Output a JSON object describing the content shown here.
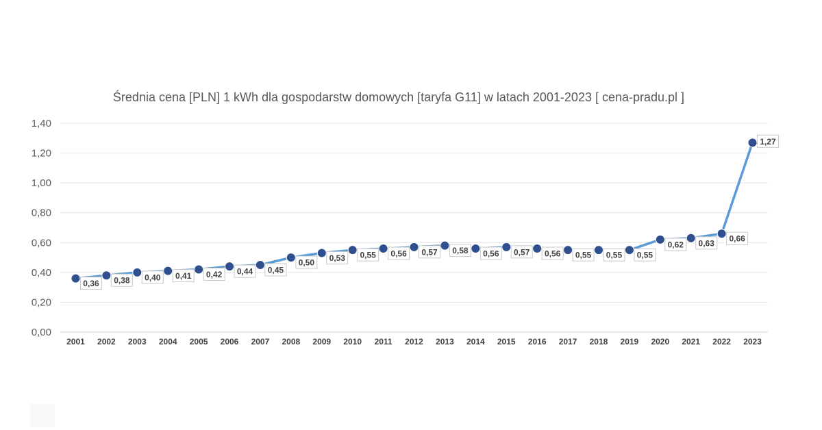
{
  "chart_data": {
    "type": "line",
    "title": "Średnia cena [PLN] 1 kWh dla gospodarstw domowych [taryfa G11] w latach 2001-2023 [ cena-pradu.pl ]",
    "xlabel": "",
    "ylabel": "",
    "ylim": [
      0,
      1.4
    ],
    "y_ticks": [
      "0,00",
      "0,20",
      "0,40",
      "0,60",
      "0,80",
      "1,00",
      "1,20",
      "1,40"
    ],
    "grid": true,
    "legend": "none",
    "categories": [
      "2001",
      "2002",
      "2003",
      "2004",
      "2005",
      "2006",
      "2007",
      "2008",
      "2009",
      "2010",
      "2011",
      "2012",
      "2013",
      "2014",
      "2015",
      "2016",
      "2017",
      "2018",
      "2019",
      "2020",
      "2021",
      "2022",
      "2023"
    ],
    "series": [
      {
        "values": [
          0.36,
          0.38,
          0.4,
          0.41,
          0.42,
          0.44,
          0.45,
          0.5,
          0.53,
          0.55,
          0.56,
          0.57,
          0.58,
          0.56,
          0.57,
          0.56,
          0.55,
          0.55,
          0.55,
          0.62,
          0.63,
          0.66,
          1.27
        ],
        "labels": [
          "0,36",
          "0,38",
          "0,40",
          "0,41",
          "0,42",
          "0,44",
          "0,45",
          "0,50",
          "0,53",
          "0,55",
          "0,56",
          "0,57",
          "0,58",
          "0,56",
          "0,57",
          "0,56",
          "0,55",
          "0,55",
          "0,55",
          "0,62",
          "0,63",
          "0,66",
          "1,27"
        ]
      }
    ],
    "colors": {
      "line": "#5b9bd5",
      "marker": "#2f4f8f",
      "text": "#595959"
    }
  }
}
